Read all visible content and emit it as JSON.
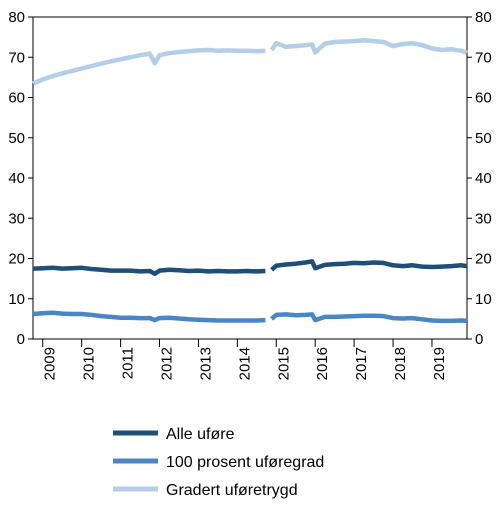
{
  "chart_data": {
    "type": "line",
    "y_left": {
      "min": 0,
      "max": 80,
      "ticks": [
        0,
        10,
        20,
        30,
        40,
        50,
        60,
        70,
        80
      ]
    },
    "y_right": {
      "min": 0,
      "max": 80,
      "ticks": [
        0,
        10,
        20,
        30,
        40,
        50,
        60,
        70,
        80
      ]
    },
    "x_range": [
      2008.75,
      2019.9
    ],
    "x_tick_labels": [
      "2009",
      "2010",
      "2011",
      "2012",
      "2013",
      "2014",
      "2015",
      "2016",
      "2017",
      "2018",
      "2019"
    ],
    "grid": false,
    "legend_position": "bottom",
    "series": [
      {
        "name": "Alle uføre",
        "color": "#1f4e79",
        "segments": [
          [
            [
              2008.75,
              17.5
            ],
            [
              2009.0,
              17.6
            ],
            [
              2009.25,
              17.7
            ],
            [
              2009.5,
              17.5
            ],
            [
              2009.75,
              17.6
            ],
            [
              2010.0,
              17.7
            ],
            [
              2010.25,
              17.4
            ],
            [
              2010.5,
              17.2
            ],
            [
              2010.75,
              17.0
            ],
            [
              2011.0,
              17.0
            ],
            [
              2011.25,
              17.0
            ],
            [
              2011.5,
              16.8
            ],
            [
              2011.75,
              16.9
            ],
            [
              2011.88,
              16.2
            ],
            [
              2012.0,
              17.0
            ],
            [
              2012.25,
              17.2
            ],
            [
              2012.5,
              17.1
            ],
            [
              2012.75,
              16.9
            ],
            [
              2013.0,
              17.0
            ],
            [
              2013.25,
              16.8
            ],
            [
              2013.5,
              16.9
            ],
            [
              2013.75,
              16.8
            ],
            [
              2014.0,
              16.8
            ],
            [
              2014.25,
              16.9
            ],
            [
              2014.5,
              16.8
            ],
            [
              2014.72,
              16.9
            ]
          ],
          [
            [
              2014.88,
              17.2
            ],
            [
              2015.0,
              18.2
            ],
            [
              2015.25,
              18.5
            ],
            [
              2015.5,
              18.7
            ],
            [
              2015.75,
              19.0
            ],
            [
              2015.92,
              19.3
            ],
            [
              2016.0,
              17.6
            ],
            [
              2016.25,
              18.4
            ],
            [
              2016.5,
              18.6
            ],
            [
              2016.75,
              18.7
            ],
            [
              2017.0,
              18.9
            ],
            [
              2017.25,
              18.8
            ],
            [
              2017.5,
              19.0
            ],
            [
              2017.75,
              18.9
            ],
            [
              2018.0,
              18.3
            ],
            [
              2018.25,
              18.1
            ],
            [
              2018.5,
              18.3
            ],
            [
              2018.75,
              18.0
            ],
            [
              2019.0,
              17.9
            ],
            [
              2019.25,
              18.0
            ],
            [
              2019.5,
              18.1
            ],
            [
              2019.75,
              18.3
            ],
            [
              2019.9,
              18.1
            ]
          ]
        ]
      },
      {
        "name": "100 prosent uføregrad",
        "color": "#4a86c5",
        "segments": [
          [
            [
              2008.75,
              6.2
            ],
            [
              2009.0,
              6.4
            ],
            [
              2009.25,
              6.5
            ],
            [
              2009.5,
              6.3
            ],
            [
              2009.75,
              6.2
            ],
            [
              2010.0,
              6.2
            ],
            [
              2010.25,
              6.0
            ],
            [
              2010.5,
              5.7
            ],
            [
              2010.75,
              5.5
            ],
            [
              2011.0,
              5.3
            ],
            [
              2011.25,
              5.3
            ],
            [
              2011.5,
              5.2
            ],
            [
              2011.75,
              5.2
            ],
            [
              2011.88,
              4.7
            ],
            [
              2012.0,
              5.2
            ],
            [
              2012.25,
              5.3
            ],
            [
              2012.5,
              5.1
            ],
            [
              2012.75,
              4.9
            ],
            [
              2013.0,
              4.8
            ],
            [
              2013.25,
              4.7
            ],
            [
              2013.5,
              4.6
            ],
            [
              2013.75,
              4.6
            ],
            [
              2014.0,
              4.6
            ],
            [
              2014.25,
              4.6
            ],
            [
              2014.5,
              4.6
            ],
            [
              2014.72,
              4.7
            ]
          ],
          [
            [
              2014.88,
              5.0
            ],
            [
              2015.0,
              6.0
            ],
            [
              2015.25,
              6.1
            ],
            [
              2015.5,
              5.9
            ],
            [
              2015.75,
              6.0
            ],
            [
              2015.92,
              6.1
            ],
            [
              2016.0,
              4.7
            ],
            [
              2016.25,
              5.5
            ],
            [
              2016.5,
              5.5
            ],
            [
              2016.75,
              5.6
            ],
            [
              2017.0,
              5.7
            ],
            [
              2017.25,
              5.8
            ],
            [
              2017.5,
              5.8
            ],
            [
              2017.75,
              5.7
            ],
            [
              2018.0,
              5.2
            ],
            [
              2018.25,
              5.1
            ],
            [
              2018.5,
              5.2
            ],
            [
              2018.75,
              4.9
            ],
            [
              2019.0,
              4.6
            ],
            [
              2019.25,
              4.5
            ],
            [
              2019.5,
              4.5
            ],
            [
              2019.75,
              4.6
            ],
            [
              2019.9,
              4.5
            ]
          ]
        ]
      },
      {
        "name": "Gradert uføretrygd",
        "color": "#b4cde8",
        "segments": [
          [
            [
              2008.75,
              63.5
            ],
            [
              2009.0,
              64.5
            ],
            [
              2009.25,
              65.3
            ],
            [
              2009.5,
              66.0
            ],
            [
              2009.75,
              66.6
            ],
            [
              2010.0,
              67.2
            ],
            [
              2010.25,
              67.8
            ],
            [
              2010.5,
              68.4
            ],
            [
              2010.75,
              69.0
            ],
            [
              2011.0,
              69.5
            ],
            [
              2011.25,
              70.0
            ],
            [
              2011.5,
              70.5
            ],
            [
              2011.75,
              70.9
            ],
            [
              2011.88,
              68.5
            ],
            [
              2012.0,
              70.5
            ],
            [
              2012.25,
              71.0
            ],
            [
              2012.5,
              71.3
            ],
            [
              2012.75,
              71.5
            ],
            [
              2013.0,
              71.7
            ],
            [
              2013.25,
              71.8
            ],
            [
              2013.5,
              71.6
            ],
            [
              2013.75,
              71.7
            ],
            [
              2014.0,
              71.6
            ],
            [
              2014.25,
              71.6
            ],
            [
              2014.5,
              71.5
            ],
            [
              2014.72,
              71.6
            ]
          ],
          [
            [
              2014.88,
              71.8
            ],
            [
              2015.0,
              73.5
            ],
            [
              2015.25,
              72.6
            ],
            [
              2015.5,
              72.8
            ],
            [
              2015.75,
              73.0
            ],
            [
              2015.92,
              73.2
            ],
            [
              2016.0,
              71.2
            ],
            [
              2016.25,
              73.4
            ],
            [
              2016.5,
              73.8
            ],
            [
              2016.75,
              73.9
            ],
            [
              2017.0,
              74.0
            ],
            [
              2017.25,
              74.2
            ],
            [
              2017.5,
              74.0
            ],
            [
              2017.75,
              73.8
            ],
            [
              2018.0,
              72.8
            ],
            [
              2018.25,
              73.3
            ],
            [
              2018.5,
              73.5
            ],
            [
              2018.75,
              73.0
            ],
            [
              2019.0,
              72.2
            ],
            [
              2019.25,
              71.8
            ],
            [
              2019.5,
              72.0
            ],
            [
              2019.75,
              71.6
            ],
            [
              2019.9,
              71.1
            ]
          ]
        ]
      }
    ]
  }
}
